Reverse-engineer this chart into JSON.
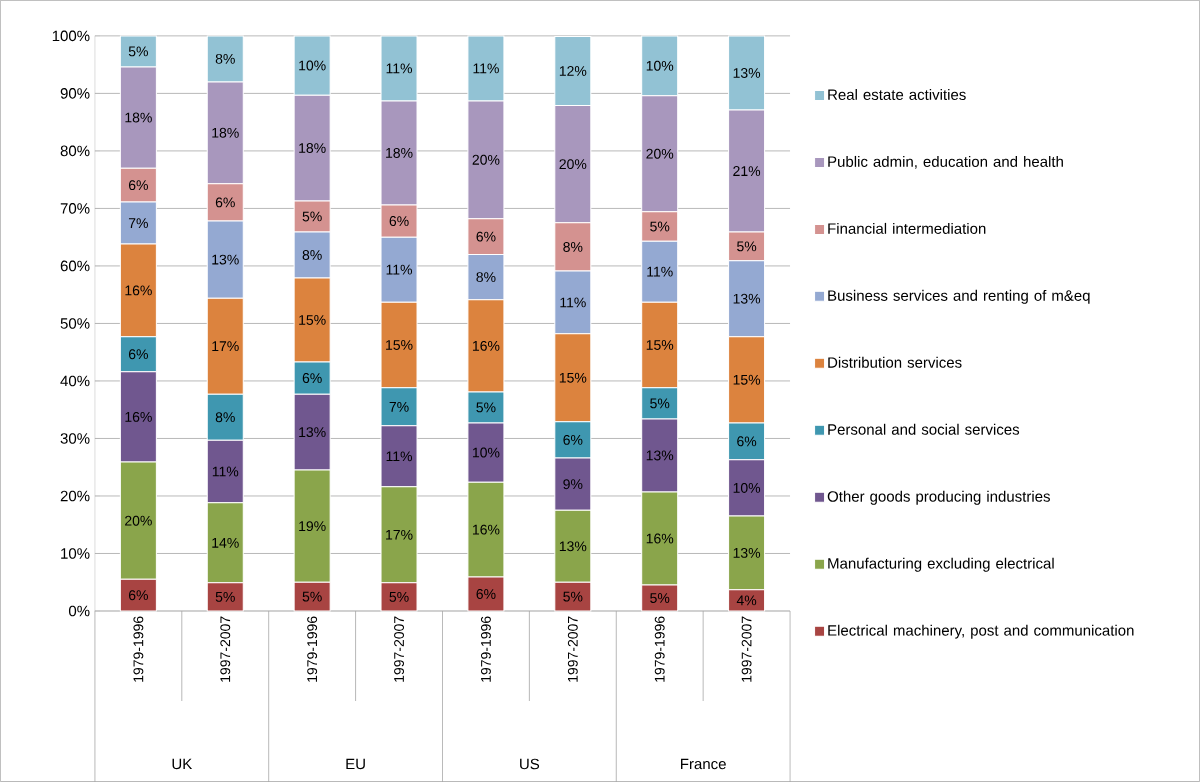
{
  "chart_data": {
    "type": "bar",
    "stacked": true,
    "categories": [
      "1979-1996",
      "1997-2007",
      "1979-1996",
      "1997-2007",
      "1979-1996",
      "1997-2007",
      "1979-1996",
      "1997-2007"
    ],
    "annotations": [
      "UK",
      "EU",
      "US",
      "France"
    ],
    "ylim": [
      0,
      100
    ],
    "yticks": [
      {
        "value": 0,
        "label": "0%"
      },
      {
        "value": 10,
        "label": "10%"
      },
      {
        "value": 20,
        "label": "20%"
      },
      {
        "value": 30,
        "label": "30%"
      },
      {
        "value": 40,
        "label": "40%"
      },
      {
        "value": 50,
        "label": "50%"
      },
      {
        "value": 60,
        "label": "60%"
      },
      {
        "value": 70,
        "label": "70%"
      },
      {
        "value": 80,
        "label": "80%"
      },
      {
        "value": 90,
        "label": "90%"
      },
      {
        "value": 100,
        "label": "100%"
      }
    ],
    "grid": "y",
    "legend": "right",
    "series": [
      {
        "name": "Electrical machinery, post and communication",
        "color": "#a84442",
        "values": [
          5.5,
          4.9,
          5.0,
          4.9,
          5.9,
          5.0,
          4.5,
          3.7
        ],
        "value_labels": [
          "6%",
          "5%",
          "5%",
          "5%",
          "6%",
          "5%",
          "5%",
          "4%"
        ]
      },
      {
        "name": "Manufacturing excluding electrical",
        "color": "#8aa54b",
        "values": [
          20.4,
          13.9,
          19.5,
          16.7,
          16.5,
          12.5,
          16.2,
          12.8
        ],
        "value_labels": [
          "20%",
          "14%",
          "19%",
          "17%",
          "16%",
          "13%",
          "16%",
          "13%"
        ]
      },
      {
        "name": "Other goods producing industries",
        "color": "#70578f",
        "values": [
          15.7,
          10.9,
          13.2,
          10.6,
          10.3,
          9.1,
          12.7,
          9.8
        ],
        "value_labels": [
          "16%",
          "11%",
          "13%",
          "11%",
          "10%",
          "9%",
          "13%",
          "10%"
        ]
      },
      {
        "name": "Personal and social services",
        "color": "#3f97b0",
        "values": [
          6.1,
          8.0,
          5.6,
          6.6,
          5.4,
          6.3,
          5.4,
          6.4
        ],
        "value_labels": [
          "6%",
          "8%",
          "6%",
          "7%",
          "5%",
          "6%",
          "5%",
          "6%"
        ]
      },
      {
        "name": "Distribution services",
        "color": "#dc833e",
        "values": [
          16.1,
          16.7,
          14.6,
          14.9,
          16.0,
          15.3,
          14.9,
          15.0
        ],
        "value_labels": [
          "16%",
          "17%",
          "15%",
          "15%",
          "16%",
          "15%",
          "15%",
          "15%"
        ]
      },
      {
        "name": "Business services and renting of m&eq",
        "color": "#94a9d2",
        "values": [
          7.3,
          13.4,
          8.0,
          11.3,
          7.9,
          10.9,
          10.6,
          13.2
        ],
        "value_labels": [
          "7%",
          "13%",
          "8%",
          "11%",
          "8%",
          "11%",
          "11%",
          "13%"
        ]
      },
      {
        "name": "Financial intermediation",
        "color": "#d49290",
        "values": [
          5.9,
          6.5,
          5.4,
          5.6,
          6.2,
          8.4,
          5.1,
          5.0
        ],
        "value_labels": [
          "6%",
          "6%",
          "5%",
          "6%",
          "6%",
          "8%",
          "5%",
          "5%"
        ]
      },
      {
        "name": "Public admin, education and health",
        "color": "#a897bd",
        "values": [
          17.6,
          17.7,
          18.4,
          18.1,
          20.5,
          20.4,
          20.2,
          21.2
        ],
        "value_labels": [
          "18%",
          "18%",
          "18%",
          "18%",
          "20%",
          "20%",
          "20%",
          "21%"
        ]
      },
      {
        "name": "Real estate activities",
        "color": "#92c2d4",
        "values": [
          5.4,
          8.0,
          10.3,
          11.3,
          11.3,
          12.0,
          10.4,
          12.9
        ],
        "value_labels": [
          "5%",
          "8%",
          "10%",
          "11%",
          "11%",
          "12%",
          "10%",
          "13%"
        ]
      }
    ]
  }
}
